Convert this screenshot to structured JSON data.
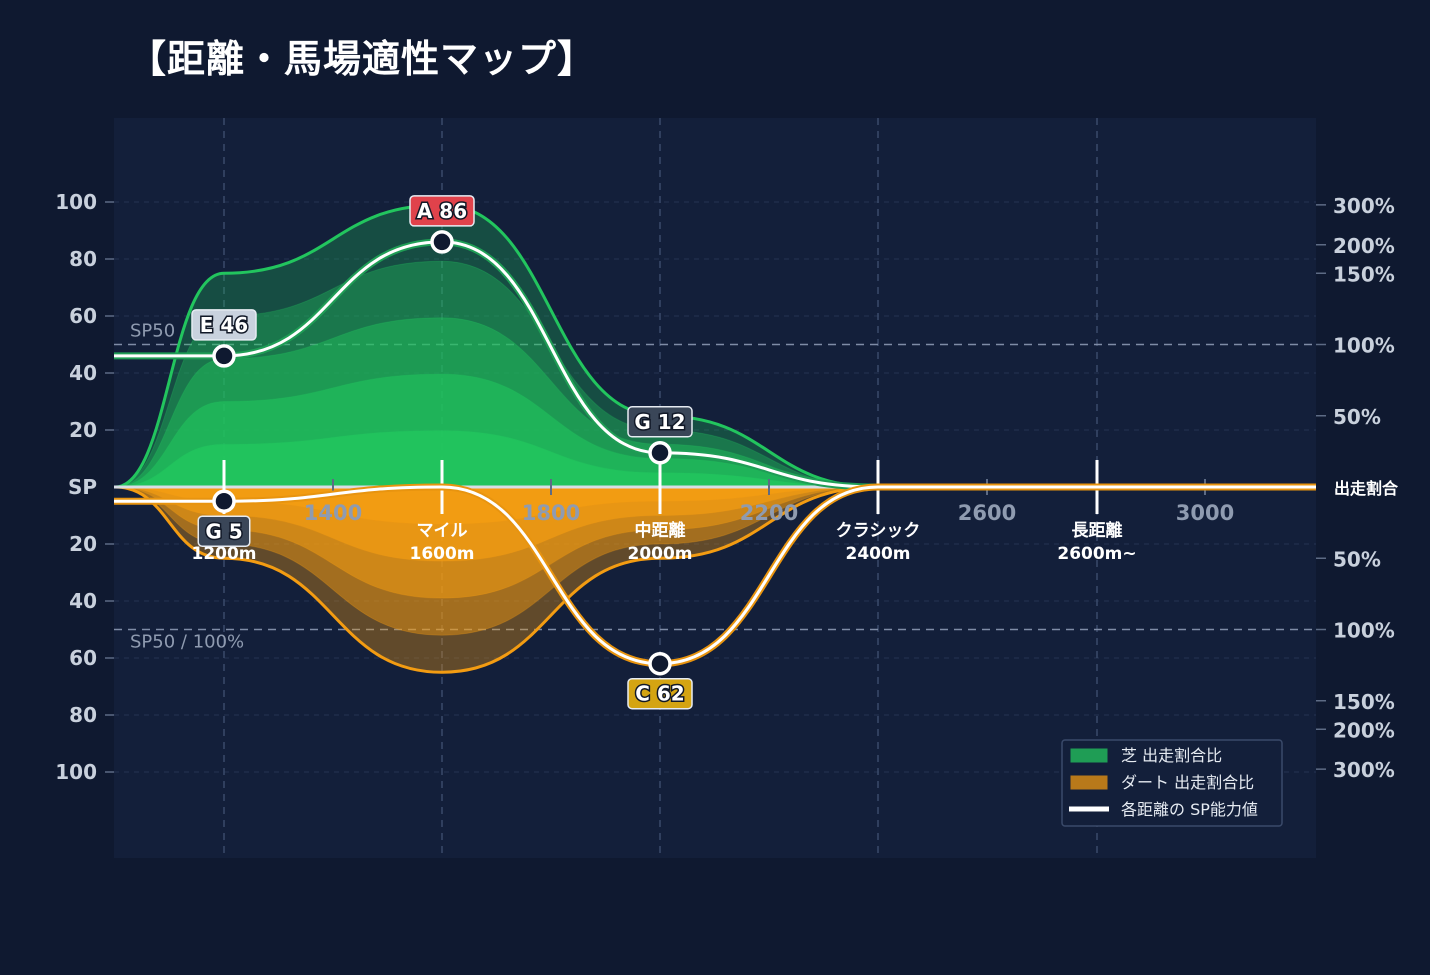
{
  "title": "【距離・馬場適性マップ】",
  "chart_data": {
    "type": "area",
    "x_ticks": [
      1400,
      1800,
      2200,
      2600,
      3000
    ],
    "categories": [
      {
        "name": "マイル",
        "dist": "1600m"
      },
      {
        "name": "中距離",
        "dist": "2000m"
      },
      {
        "name": "クラシック",
        "dist": "2400m"
      },
      {
        "name": "長距離",
        "dist": "2600m~"
      }
    ],
    "category_first_dist": "1200m",
    "y_left_ticks": [
      "100",
      "80",
      "60",
      "40",
      "20",
      "SP",
      "20",
      "40",
      "60",
      "80",
      "100"
    ],
    "y_right_ticks_top": [
      "300%",
      "200%",
      "150%",
      "100%",
      "50%"
    ],
    "y_right_ticks_bottom": [
      "50%",
      "100%",
      "150%",
      "200%",
      "300%"
    ],
    "y_right_center": "出走割合",
    "reference_lines": {
      "top": "SP50",
      "bottom": "SP50 / 100%"
    },
    "series": [
      {
        "name": "芝 出走割合比",
        "color": "#22c55e",
        "x": [
          1000,
          1200,
          1600,
          2000,
          2400,
          3200
        ],
        "values_pct": [
          0,
          150,
          300,
          50,
          0,
          0
        ]
      },
      {
        "name": "ダート 出走割合比",
        "color": "#f39c12",
        "x": [
          1000,
          1200,
          1600,
          2000,
          2400,
          3200
        ],
        "values_pct": [
          0,
          50,
          130,
          50,
          0,
          0
        ]
      },
      {
        "name": "各距離の SP能力値",
        "color": "#ffffff",
        "turf_points": [
          {
            "dist": 1200,
            "grade": "E",
            "sp": 46
          },
          {
            "dist": 1600,
            "grade": "A",
            "sp": 86
          },
          {
            "dist": 2000,
            "grade": "G",
            "sp": 12
          }
        ],
        "dirt_points": [
          {
            "dist": 1200,
            "grade": "G",
            "sp": 5
          },
          {
            "dist": 2000,
            "grade": "C",
            "sp": 62
          }
        ],
        "left_level": {
          "turf": 46,
          "dirt": 5
        }
      }
    ],
    "legend": [
      {
        "label": "芝 出走割合比",
        "swatch": "#1f9d55"
      },
      {
        "label": "ダート 出走割合比",
        "swatch": "#b8791a"
      },
      {
        "label": "各距離の SP能力値",
        "swatch": "#ffffff"
      }
    ],
    "badge_colors": {
      "A": "#e0424b",
      "C": "#d4a412",
      "E": "#c9d2de",
      "G": "#3a4658"
    },
    "grid": true,
    "legend_position": "bottom-right"
  }
}
